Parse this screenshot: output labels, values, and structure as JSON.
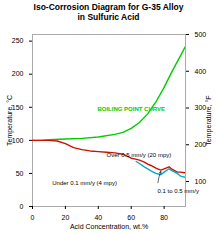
{
  "chart_data": {
    "type": "line",
    "title": "Iso-Corrosion Diagram for G-35 Alloy\nin Sulfuric Acid",
    "xlabel": "Acid Concentration, wt.%",
    "ylabel": "Temperature, °C",
    "y2label": "Temperature, °F",
    "xlim": [
      0,
      93
    ],
    "ylim": [
      0,
      260
    ],
    "y2lim": [
      32,
      500
    ],
    "xticks": [
      0,
      20,
      40,
      60,
      80
    ],
    "yticks": [
      0,
      50,
      100,
      150,
      200,
      250
    ],
    "y2ticks": [
      100,
      200,
      300,
      400,
      500
    ],
    "series": [
      {
        "color": "#00cc00",
        "x": [
          0,
          5,
          10,
          20,
          30,
          40,
          50,
          55,
          60,
          65,
          70,
          75,
          80,
          85,
          90,
          93
        ],
        "values": [
          100,
          100,
          101,
          102,
          103,
          105,
          109,
          112,
          118,
          127,
          140,
          158,
          180,
          205,
          228,
          242
        ]
      },
      {
        "color": "#cc1100",
        "x": [
          0,
          5,
          10,
          15,
          20,
          25,
          30,
          35,
          40,
          45,
          50,
          55,
          60,
          62,
          65,
          68,
          70,
          72,
          75,
          78,
          80,
          83,
          85,
          88,
          90,
          93
        ],
        "values": [
          100,
          100,
          100,
          99,
          95,
          89,
          86,
          84,
          83,
          82,
          81,
          79,
          73,
          72,
          70,
          67,
          64,
          62,
          58,
          55,
          57,
          60,
          56,
          52,
          52,
          51
        ]
      },
      {
        "color": "#00aacc",
        "x": [
          63,
          65,
          68,
          70,
          72,
          75,
          78,
          80,
          83,
          85,
          88,
          90,
          93
        ],
        "values": [
          68,
          65,
          60,
          57,
          54,
          50,
          48,
          52,
          57,
          54,
          50,
          46,
          44
        ]
      }
    ],
    "annotations": [
      {
        "text": "BOILING POINT CURVE",
        "x": 60,
        "y": 145,
        "color": "#00cc00"
      },
      {
        "text": "Over 0.5 mm/y (20 mpy)",
        "x": 45,
        "y": 78
      },
      {
        "text": "Under 0.1 mm/y (4 mpy)",
        "x": 12,
        "y": 35
      },
      {
        "text": "0.1 to 0.5 mm/y",
        "x": 76,
        "y": 30,
        "arrow_x": 78,
        "arrow_y": 53
      }
    ]
  }
}
